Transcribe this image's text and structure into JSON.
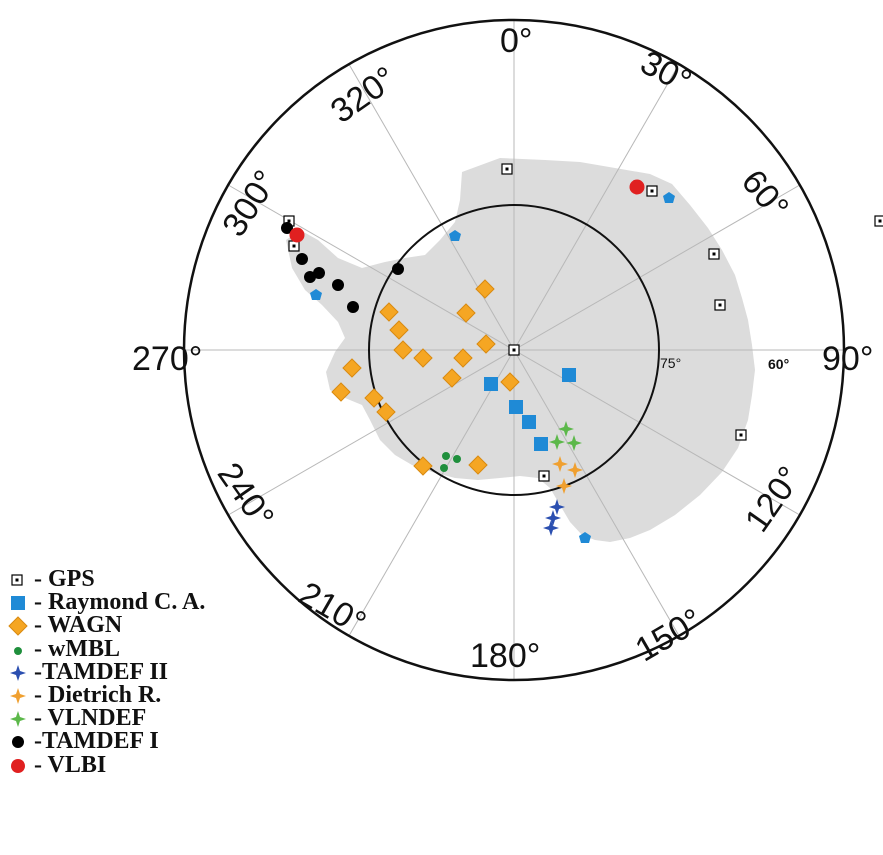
{
  "colors": {
    "gps": "#000000",
    "raymond": "#1f8ad6",
    "wagn": "#f5a623",
    "wmbl": "#1f8f3c",
    "tamdef2": "#2b4fb0",
    "dietrich": "#f0a030",
    "vlndef": "#5cb84a",
    "tamdef1": "#000000",
    "vlbi": "#e02020",
    "land": "#dcdcdc"
  },
  "map": {
    "longitude_labels": [
      "0°",
      "30°",
      "60°",
      "90°",
      "120°",
      "150°",
      "180°",
      "210°",
      "240°",
      "270°",
      "300°",
      "320°"
    ],
    "latitude_labels": [
      "75°",
      "60°"
    ]
  },
  "legend": {
    "items": [
      {
        "key": "gps",
        "label": "- GPS",
        "icon": "open-square-icon"
      },
      {
        "key": "raymond",
        "label": "- Raymond C. A.",
        "icon": "filled-square-icon"
      },
      {
        "key": "wagn",
        "label": "- WAGN",
        "icon": "diamond-icon"
      },
      {
        "key": "wmbl",
        "label": "- wMBL",
        "icon": "small-dot-icon"
      },
      {
        "key": "tamdef2",
        "label": "-TAMDEF II",
        "icon": "star-icon"
      },
      {
        "key": "dietrich",
        "label": "- Dietrich R.",
        "icon": "star-icon"
      },
      {
        "key": "vlndef",
        "label": "- VLNDEF",
        "icon": "star-icon"
      },
      {
        "key": "tamdef1",
        "label": "-TAMDEF I",
        "icon": "dot-icon"
      },
      {
        "key": "vlbi",
        "label": "- VLBI",
        "icon": "red-dot-icon"
      }
    ]
  }
}
